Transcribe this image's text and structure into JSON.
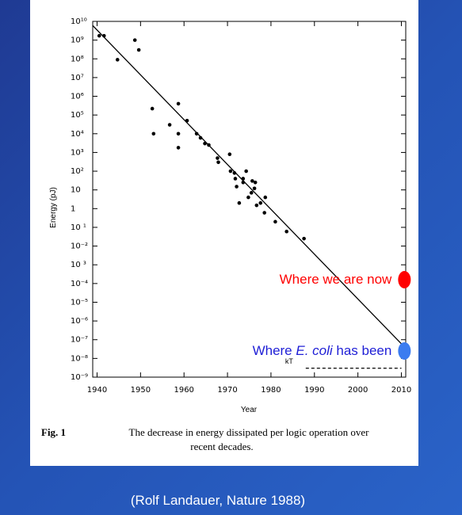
{
  "chart_data": {
    "type": "scatter",
    "x_label": "Year",
    "y_label": "Energy (pJ)",
    "y_scale": "log",
    "color": "#000000",
    "xlim": [
      1939,
      2011
    ],
    "ylim": [
      1e-09,
      10000000000.0
    ],
    "xticks": [
      1940,
      1950,
      1960,
      1970,
      1980,
      1990,
      2000,
      2010
    ],
    "yticks": [
      {
        "value": 10000000000.0,
        "label": "10¹⁰"
      },
      {
        "value": 1000000000.0,
        "label": "10⁹"
      },
      {
        "value": 100000000.0,
        "label": "10⁸"
      },
      {
        "value": 10000000.0,
        "label": "10⁷"
      },
      {
        "value": 1000000.0,
        "label": "10⁶"
      },
      {
        "value": 100000.0,
        "label": "10⁵"
      },
      {
        "value": 10000.0,
        "label": "10⁴"
      },
      {
        "value": 1000.0,
        "label": "10³"
      },
      {
        "value": 100.0,
        "label": "10²"
      },
      10,
      1,
      {
        "value": 0.1,
        "label": "10 ¹"
      },
      {
        "value": 0.01,
        "label": "10⁻²"
      },
      {
        "value": 0.001,
        "label": "10 ³"
      },
      {
        "value": 0.0001,
        "label": "10⁻⁴"
      },
      {
        "value": 1e-05,
        "label": "10⁻⁵"
      },
      {
        "value": 1e-06,
        "label": "10⁻⁶"
      },
      {
        "value": 1e-07,
        "label": "10⁻⁷"
      },
      {
        "value": 1e-08,
        "label": "10⁻⁸"
      },
      {
        "value": 1e-09,
        "label": "10⁻⁹"
      }
    ],
    "x": [
      1940.5,
      1941.6,
      1944.7,
      1948.7,
      1949.6,
      1952.7,
      1953,
      1956.7,
      1958.7,
      1958.7,
      1958.7,
      1960.7,
      1962.9,
      1963.8,
      1964.8,
      1965.7,
      1967.7,
      1967.9,
      1970.5,
      1970.7,
      1971.6,
      1971.8,
      1972.1,
      1973.6,
      1974.3,
      1973.6,
      1974.8,
      1975.7,
      1976.2,
      1976.4,
      1972.7,
      1975.5,
      1976.7,
      1977.6,
      1978.7,
      1978.5,
      1981,
      1983.6,
      1987.6
    ],
    "values": [
      1700000000.0,
      1700000000.0,
      90000000.0,
      1000000000.0,
      300000000.0,
      220000.0,
      10000.0,
      30000.0,
      400000.0,
      10000.0,
      1800.0,
      50000.0,
      10000.0,
      6000.0,
      3000.0,
      2500.0,
      500.0,
      300.0,
      800.0,
      100.0,
      80.0,
      40.0,
      15.0,
      40.0,
      100.0,
      25.0,
      4,
      30.0,
      12.0,
      25.0,
      2,
      7,
      1.5,
      2,
      4,
      0.6,
      0.2,
      0.06,
      0.025
    ],
    "trend": {
      "x": [
        1939,
        2010
      ],
      "values": [
        6000000000.0,
        6e-08
      ]
    },
    "kt_line": {
      "label": "kT",
      "x": [
        1988,
        2010
      ],
      "value": 3e-09
    },
    "markers": [
      {
        "parts": [
          "Where we are now"
        ],
        "color": "#ff0000",
        "x": 2010.7,
        "value": 0.00016
      },
      {
        "parts": [
          "Where ",
          "E. coli",
          " has been"
        ],
        "color": "#1f1fd6",
        "marker_color": "#3b7cf0",
        "x": 2010.7,
        "value": 2.5e-08
      }
    ]
  },
  "caption": {
    "label": "Fig. 1",
    "text_lines": [
      "The decrease in energy dissipated per logic operation over",
      "recent decades."
    ]
  },
  "footer": "(Rolf Landauer, Nature 1988)"
}
